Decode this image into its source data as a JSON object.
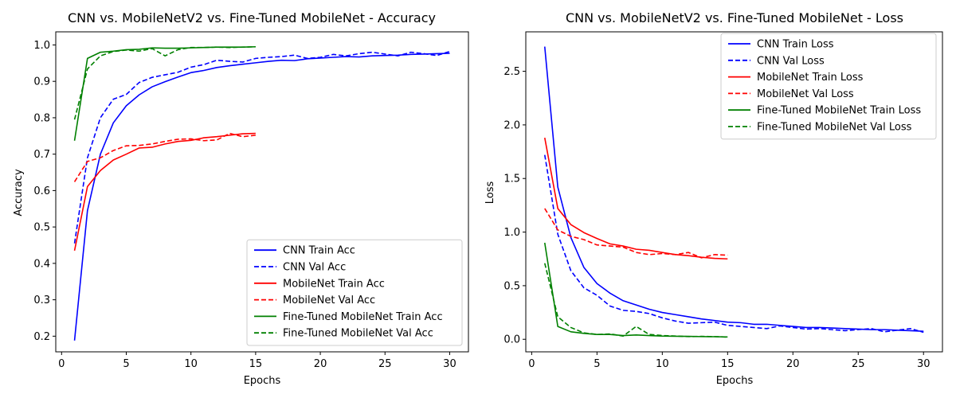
{
  "chart_data": [
    {
      "type": "line",
      "title": "CNN vs. MobileNetV2 vs. Fine-Tuned MobileNet - Accuracy",
      "xlabel": "Epochs",
      "ylabel": "Accuracy",
      "xlim": [
        -0.45,
        31.45
      ],
      "ylim": [
        0.157,
        1.036
      ],
      "xticks": [
        0,
        5,
        10,
        15,
        20,
        25,
        30
      ],
      "yticks": [
        0.2,
        0.3,
        0.4,
        0.5,
        0.6,
        0.7,
        0.8,
        0.9,
        1.0
      ],
      "ytick_labels": [
        "0.2",
        "0.3",
        "0.4",
        "0.5",
        "0.6",
        "0.7",
        "0.8",
        "0.9",
        "1.0"
      ],
      "grid": false,
      "legend_position": "bottom-right",
      "series": [
        {
          "name": "CNN Train Acc",
          "color": "#0000ff",
          "dash": "solid",
          "x": [
            1,
            2,
            3,
            4,
            5,
            6,
            7,
            8,
            9,
            10,
            11,
            12,
            13,
            14,
            15,
            16,
            17,
            18,
            19,
            20,
            21,
            22,
            23,
            24,
            25,
            26,
            27,
            28,
            29,
            30
          ],
          "y": [
            0.188,
            0.545,
            0.7,
            0.786,
            0.833,
            0.863,
            0.885,
            0.899,
            0.912,
            0.924,
            0.93,
            0.938,
            0.943,
            0.947,
            0.951,
            0.955,
            0.958,
            0.957,
            0.962,
            0.964,
            0.966,
            0.968,
            0.967,
            0.97,
            0.971,
            0.972,
            0.974,
            0.975,
            0.976,
            0.977
          ]
        },
        {
          "name": "CNN Val Acc",
          "color": "#0000ff",
          "dash": "dashed",
          "x": [
            1,
            2,
            3,
            4,
            5,
            6,
            7,
            8,
            9,
            10,
            11,
            12,
            13,
            14,
            15,
            16,
            17,
            18,
            19,
            20,
            21,
            22,
            23,
            24,
            25,
            26,
            27,
            28,
            29,
            30
          ],
          "y": [
            0.455,
            0.69,
            0.8,
            0.851,
            0.864,
            0.897,
            0.911,
            0.918,
            0.925,
            0.939,
            0.946,
            0.958,
            0.955,
            0.953,
            0.963,
            0.966,
            0.968,
            0.972,
            0.963,
            0.966,
            0.974,
            0.97,
            0.976,
            0.98,
            0.975,
            0.97,
            0.98,
            0.976,
            0.971,
            0.982
          ]
        },
        {
          "name": "MobileNet Train Acc",
          "color": "#ff0000",
          "dash": "solid",
          "x": [
            1,
            2,
            3,
            4,
            5,
            6,
            7,
            8,
            9,
            10,
            11,
            12,
            13,
            14,
            15
          ],
          "y": [
            0.435,
            0.611,
            0.655,
            0.684,
            0.7,
            0.717,
            0.719,
            0.728,
            0.735,
            0.738,
            0.745,
            0.748,
            0.752,
            0.756,
            0.757
          ]
        },
        {
          "name": "MobileNet Val Acc",
          "color": "#ff0000",
          "dash": "dashed",
          "x": [
            1,
            2,
            3,
            4,
            5,
            6,
            7,
            8,
            9,
            10,
            11,
            12,
            13,
            14,
            15
          ],
          "y": [
            0.624,
            0.68,
            0.69,
            0.71,
            0.723,
            0.724,
            0.728,
            0.735,
            0.741,
            0.742,
            0.737,
            0.739,
            0.757,
            0.748,
            0.752
          ]
        },
        {
          "name": "Fine-Tuned MobileNet Train Acc",
          "color": "#008000",
          "dash": "solid",
          "x": [
            1,
            2,
            3,
            4,
            5,
            6,
            7,
            8,
            9,
            10,
            11,
            12,
            13,
            14,
            15
          ],
          "y": [
            0.737,
            0.963,
            0.98,
            0.983,
            0.987,
            0.988,
            0.992,
            0.991,
            0.991,
            0.992,
            0.993,
            0.994,
            0.994,
            0.994,
            0.995
          ]
        },
        {
          "name": "Fine-Tuned MobileNet Val Acc",
          "color": "#008000",
          "dash": "dashed",
          "x": [
            1,
            2,
            3,
            4,
            5,
            6,
            7,
            8,
            9,
            10,
            11,
            12,
            13,
            14,
            15
          ],
          "y": [
            0.795,
            0.934,
            0.97,
            0.982,
            0.986,
            0.983,
            0.99,
            0.97,
            0.987,
            0.993,
            0.993,
            0.994,
            0.993,
            0.994,
            0.995
          ]
        }
      ]
    },
    {
      "type": "line",
      "title": "CNN vs. MobileNetV2 vs. Fine-Tuned MobileNet - Loss",
      "xlabel": "Epochs",
      "ylabel": "Loss",
      "xlim": [
        -0.45,
        31.45
      ],
      "ylim": [
        -0.117,
        2.868
      ],
      "xticks": [
        0,
        5,
        10,
        15,
        20,
        25,
        30
      ],
      "yticks": [
        0.0,
        0.5,
        1.0,
        1.5,
        2.0,
        2.5
      ],
      "ytick_labels": [
        "0.0",
        "0.5",
        "1.0",
        "1.5",
        "2.0",
        "2.5"
      ],
      "grid": false,
      "legend_position": "top-right",
      "series": [
        {
          "name": "CNN Train Loss",
          "color": "#0000ff",
          "dash": "solid",
          "x": [
            1,
            2,
            3,
            4,
            5,
            6,
            7,
            8,
            9,
            10,
            11,
            12,
            13,
            14,
            15,
            16,
            17,
            18,
            19,
            20,
            21,
            22,
            23,
            24,
            25,
            26,
            27,
            28,
            29,
            30
          ],
          "y": [
            2.73,
            1.42,
            0.95,
            0.67,
            0.52,
            0.43,
            0.36,
            0.32,
            0.28,
            0.25,
            0.23,
            0.21,
            0.19,
            0.175,
            0.16,
            0.155,
            0.14,
            0.14,
            0.13,
            0.12,
            0.11,
            0.11,
            0.105,
            0.1,
            0.095,
            0.09,
            0.09,
            0.085,
            0.08,
            0.075
          ]
        },
        {
          "name": "CNN Val Loss",
          "color": "#0000ff",
          "dash": "dashed",
          "x": [
            1,
            2,
            3,
            4,
            5,
            6,
            7,
            8,
            9,
            10,
            11,
            12,
            13,
            14,
            15,
            16,
            17,
            18,
            19,
            20,
            21,
            22,
            23,
            24,
            25,
            26,
            27,
            28,
            29,
            30
          ],
          "y": [
            1.72,
            0.98,
            0.64,
            0.48,
            0.41,
            0.31,
            0.27,
            0.26,
            0.24,
            0.2,
            0.17,
            0.15,
            0.155,
            0.16,
            0.13,
            0.12,
            0.11,
            0.1,
            0.125,
            0.11,
            0.095,
            0.1,
            0.09,
            0.08,
            0.09,
            0.1,
            0.07,
            0.085,
            0.1,
            0.065
          ]
        },
        {
          "name": "MobileNet Train Loss",
          "color": "#ff0000",
          "dash": "solid",
          "x": [
            1,
            2,
            3,
            4,
            5,
            6,
            7,
            8,
            9,
            10,
            11,
            12,
            13,
            14,
            15
          ],
          "y": [
            1.88,
            1.22,
            1.07,
            0.995,
            0.94,
            0.89,
            0.87,
            0.84,
            0.83,
            0.81,
            0.79,
            0.78,
            0.765,
            0.755,
            0.75
          ]
        },
        {
          "name": "MobileNet Val Loss",
          "color": "#ff0000",
          "dash": "dashed",
          "x": [
            1,
            2,
            3,
            4,
            5,
            6,
            7,
            8,
            9,
            10,
            11,
            12,
            13,
            14,
            15
          ],
          "y": [
            1.22,
            1.02,
            0.96,
            0.93,
            0.88,
            0.87,
            0.86,
            0.81,
            0.79,
            0.8,
            0.79,
            0.81,
            0.76,
            0.79,
            0.785
          ]
        },
        {
          "name": "Fine-Tuned MobileNet Train Loss",
          "color": "#008000",
          "dash": "solid",
          "x": [
            1,
            2,
            3,
            4,
            5,
            6,
            7,
            8,
            9,
            10,
            11,
            12,
            13,
            14,
            15
          ],
          "y": [
            0.9,
            0.12,
            0.07,
            0.055,
            0.045,
            0.045,
            0.035,
            0.04,
            0.035,
            0.03,
            0.028,
            0.027,
            0.025,
            0.024,
            0.022
          ]
        },
        {
          "name": "Fine-Tuned MobileNet Val Loss",
          "color": "#008000",
          "dash": "dashed",
          "x": [
            1,
            2,
            3,
            4,
            5,
            6,
            7,
            8,
            9,
            10,
            11,
            12,
            13,
            14,
            15
          ],
          "y": [
            0.71,
            0.21,
            0.11,
            0.06,
            0.045,
            0.05,
            0.03,
            0.12,
            0.045,
            0.035,
            0.03,
            0.025,
            0.027,
            0.025,
            0.02
          ]
        }
      ]
    }
  ]
}
